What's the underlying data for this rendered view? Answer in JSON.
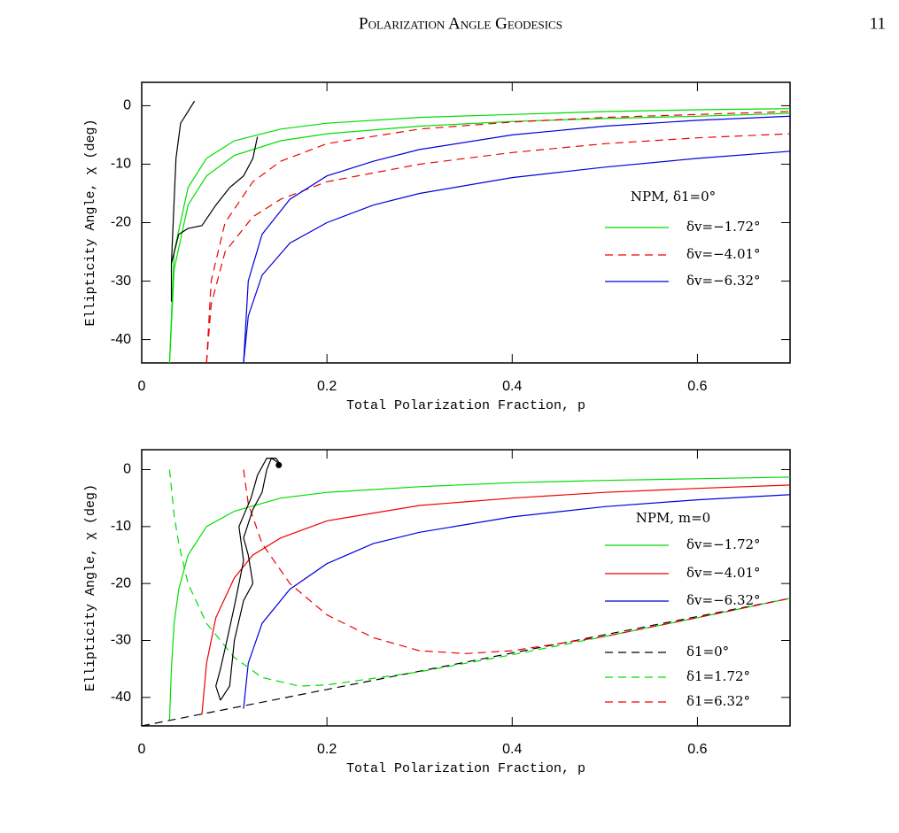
{
  "header": {
    "title": "Polarization Angle Geodesics",
    "page_number": "11"
  },
  "chart_data": [
    {
      "type": "line",
      "xlabel": "Total Polarization Fraction, p",
      "ylabel": "Ellipticity Angle, χ (deg)",
      "xlim": [
        0,
        0.7
      ],
      "ylim": [
        -44,
        4
      ],
      "xticks": [
        0,
        0.2,
        0.4,
        0.6
      ],
      "yticks": [
        0,
        -10,
        -20,
        -30,
        -40
      ],
      "legend_title": "NPM, δ1=0°",
      "series": [
        {
          "name": "δv=−1.72°",
          "color": "#00dd00",
          "dash": "solid",
          "x": [
            0.03,
            0.035,
            0.05,
            0.07,
            0.1,
            0.15,
            0.2,
            0.3,
            0.4,
            0.5,
            0.6,
            0.7
          ],
          "values": [
            -44,
            -25,
            -14,
            -9,
            -6,
            -4,
            -3,
            -2,
            -1.5,
            -1,
            -0.7,
            -0.5
          ]
        },
        {
          "color": "#00dd00",
          "dash": "solid",
          "x": [
            0.03,
            0.035,
            0.05,
            0.07,
            0.1,
            0.15,
            0.2,
            0.3,
            0.4,
            0.5,
            0.6,
            0.7
          ],
          "values": [
            -44,
            -28,
            -17,
            -12,
            -8.5,
            -6,
            -4.8,
            -3.5,
            -2.7,
            -2.2,
            -1.8,
            -1.3
          ]
        },
        {
          "name": "δv=−4.01°",
          "color": "#ee0000",
          "dash": "dashed",
          "x": [
            0.07,
            0.075,
            0.09,
            0.12,
            0.15,
            0.2,
            0.3,
            0.4,
            0.5,
            0.6,
            0.7
          ],
          "values": [
            -44,
            -30,
            -20,
            -13,
            -9.5,
            -6.5,
            -4,
            -2.8,
            -2,
            -1.5,
            -1
          ]
        },
        {
          "color": "#ee0000",
          "dash": "dashed",
          "x": [
            0.07,
            0.075,
            0.09,
            0.12,
            0.15,
            0.2,
            0.3,
            0.4,
            0.5,
            0.6,
            0.7
          ],
          "values": [
            -44,
            -34,
            -25,
            -19,
            -16,
            -13,
            -10,
            -8,
            -6.5,
            -5.5,
            -4.8
          ]
        },
        {
          "name": "δv=−6.32°",
          "color": "#0000dd",
          "dash": "solid",
          "x": [
            0.11,
            0.115,
            0.13,
            0.16,
            0.2,
            0.25,
            0.3,
            0.4,
            0.5,
            0.6,
            0.7
          ],
          "values": [
            -44,
            -30,
            -22,
            -16,
            -12,
            -9.5,
            -7.5,
            -5,
            -3.5,
            -2.5,
            -1.8
          ]
        },
        {
          "color": "#0000dd",
          "dash": "solid",
          "x": [
            0.11,
            0.115,
            0.13,
            0.16,
            0.2,
            0.25,
            0.3,
            0.4,
            0.5,
            0.6,
            0.7
          ],
          "values": [
            -44,
            -36,
            -29,
            -23.5,
            -20,
            -17,
            -15,
            -12.3,
            -10.5,
            -9,
            -7.8
          ]
        },
        {
          "color": "#000000",
          "dash": "solid",
          "x": [
            0.032,
            0.032,
            0.037,
            0.042,
            0.05,
            0.057
          ],
          "values": [
            -33.5,
            -27,
            -9,
            -3,
            -1,
            0.8
          ]
        },
        {
          "color": "#000000",
          "dash": "solid",
          "x": [
            0.032,
            0.04,
            0.05,
            0.065,
            0.08,
            0.095,
            0.11,
            0.12,
            0.125
          ],
          "values": [
            -27,
            -22,
            -21,
            -20.5,
            -17,
            -14,
            -12,
            -9,
            -5.3
          ]
        }
      ]
    },
    {
      "type": "line",
      "xlabel": "Total Polarization Fraction, p",
      "ylabel": "Ellipticity Angle, χ (deg)",
      "xlim": [
        0,
        0.7
      ],
      "ylim": [
        -45,
        3.5
      ],
      "xticks": [
        0,
        0.2,
        0.4,
        0.6
      ],
      "yticks": [
        0,
        -10,
        -20,
        -30,
        -40
      ],
      "legend_title": "NPM, m=0",
      "series": [
        {
          "name": "δv=−1.72°",
          "color": "#00dd00",
          "dash": "solid",
          "x": [
            0.03,
            0.032,
            0.035,
            0.04,
            0.05,
            0.07,
            0.1,
            0.15,
            0.2,
            0.3,
            0.4,
            0.5,
            0.6,
            0.7
          ],
          "values": [
            -44,
            -35,
            -27,
            -21,
            -15,
            -10,
            -7.3,
            -5,
            -4,
            -3,
            -2.3,
            -1.9,
            -1.6,
            -1.3
          ]
        },
        {
          "name": "δv=−4.01°",
          "color": "#ee0000",
          "dash": "solid",
          "x": [
            0.065,
            0.07,
            0.08,
            0.1,
            0.12,
            0.15,
            0.2,
            0.3,
            0.4,
            0.5,
            0.6,
            0.7
          ],
          "values": [
            -43,
            -34,
            -26,
            -19,
            -15,
            -12,
            -9,
            -6.3,
            -5,
            -4,
            -3.3,
            -2.7
          ]
        },
        {
          "name": "δv=−6.32°",
          "color": "#0000dd",
          "dash": "solid",
          "x": [
            0.11,
            0.115,
            0.13,
            0.16,
            0.2,
            0.25,
            0.3,
            0.4,
            0.5,
            0.6,
            0.7
          ],
          "values": [
            -42,
            -34,
            -27,
            -21,
            -16.5,
            -13,
            -11,
            -8.3,
            -6.5,
            -5.3,
            -4.4
          ]
        },
        {
          "name": "δ1=0°",
          "color": "#000000",
          "dash": "dashed",
          "x": [
            0,
            0.7
          ],
          "values": [
            -45,
            -22.6
          ]
        },
        {
          "name": "δ1=1.72°",
          "color": "#00dd00",
          "dash": "dashed",
          "x": [
            0.03,
            0.035,
            0.04,
            0.05,
            0.07,
            0.1,
            0.13,
            0.17,
            0.2,
            0.3,
            0.4,
            0.5,
            0.6,
            0.7
          ],
          "values": [
            0,
            -8,
            -13,
            -20,
            -27,
            -33,
            -36.5,
            -38,
            -37.8,
            -35.5,
            -32.5,
            -29.3,
            -26,
            -22.6
          ]
        },
        {
          "name": "δ1=6.32°",
          "color": "#ee0000",
          "dash": "dashed",
          "x": [
            0.11,
            0.115,
            0.13,
            0.16,
            0.2,
            0.25,
            0.3,
            0.35,
            0.4,
            0.5,
            0.6,
            0.7
          ],
          "values": [
            0,
            -6,
            -13,
            -20,
            -25.5,
            -29.5,
            -31.8,
            -32.3,
            -31.8,
            -29.3,
            -26,
            -22.6
          ]
        },
        {
          "color": "#000000",
          "dash": "solid",
          "x": [
            0.085,
            0.095,
            0.1,
            0.11,
            0.12,
            0.115,
            0.11,
            0.12,
            0.13,
            0.135,
            0.14,
            0.145,
            0.15,
            0.145,
            0.135,
            0.125,
            0.118,
            0.105,
            0.11,
            0.105,
            0.1,
            0.092,
            0.085,
            0.08,
            0.085
          ],
          "values": [
            -40.5,
            -38,
            -30,
            -23,
            -20,
            -15,
            -12,
            -7,
            -4,
            0,
            2,
            1.5,
            0.8,
            2,
            2,
            -1,
            -5,
            -10,
            -16,
            -20,
            -24,
            -30,
            -35,
            -38,
            -40.5
          ]
        },
        {
          "color": "#000000",
          "marker": "dot",
          "x": [
            0.148
          ],
          "values": [
            0.8
          ]
        }
      ]
    }
  ]
}
